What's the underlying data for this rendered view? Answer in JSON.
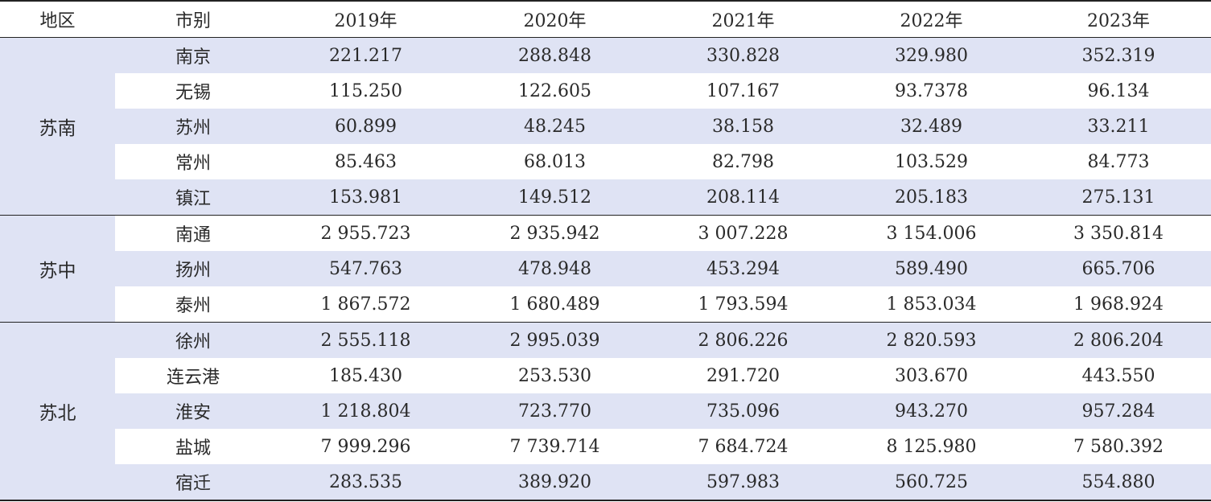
{
  "table": {
    "headers": [
      "地区",
      "市别",
      "2019年",
      "2020年",
      "2021年",
      "2022年",
      "2023年"
    ],
    "groups": [
      {
        "region": "苏南",
        "rows": [
          {
            "city": "南京",
            "values": [
              "221.217",
              "288.848",
              "330.828",
              "329.980",
              "352.319"
            ]
          },
          {
            "city": "无锡",
            "values": [
              "115.250",
              "122.605",
              "107.167",
              "93.7378",
              "96.134"
            ]
          },
          {
            "city": "苏州",
            "values": [
              "60.899",
              "48.245",
              "38.158",
              "32.489",
              "33.211"
            ]
          },
          {
            "city": "常州",
            "values": [
              "85.463",
              "68.013",
              "82.798",
              "103.529",
              "84.773"
            ]
          },
          {
            "city": "镇江",
            "values": [
              "153.981",
              "149.512",
              "208.114",
              "205.183",
              "275.131"
            ]
          }
        ]
      },
      {
        "region": "苏中",
        "rows": [
          {
            "city": "南通",
            "values": [
              "2 955.723",
              "2 935.942",
              "3 007.228",
              "3 154.006",
              "3 350.814"
            ]
          },
          {
            "city": "扬州",
            "values": [
              "547.763",
              "478.948",
              "453.294",
              "589.490",
              "665.706"
            ]
          },
          {
            "city": "泰州",
            "values": [
              "1 867.572",
              "1 680.489",
              "1 793.594",
              "1 853.034",
              "1 968.924"
            ]
          }
        ]
      },
      {
        "region": "苏北",
        "rows": [
          {
            "city": "徐州",
            "values": [
              "2 555.118",
              "2 995.039",
              "2 806.226",
              "2 820.593",
              "2 806.204"
            ]
          },
          {
            "city": "连云港",
            "values": [
              "185.430",
              "253.530",
              "291.720",
              "303.670",
              "443.550"
            ]
          },
          {
            "city": "淮安",
            "values": [
              "1 218.804",
              "723.770",
              "735.096",
              "943.270",
              "957.284"
            ]
          },
          {
            "city": "盐城",
            "values": [
              "7 999.296",
              "7 739.714",
              "7 684.724",
              "8 125.980",
              "7 580.392"
            ]
          },
          {
            "city": "宿迁",
            "values": [
              "283.535",
              "389.920",
              "597.983",
              "560.725",
              "554.880"
            ]
          }
        ]
      }
    ]
  }
}
